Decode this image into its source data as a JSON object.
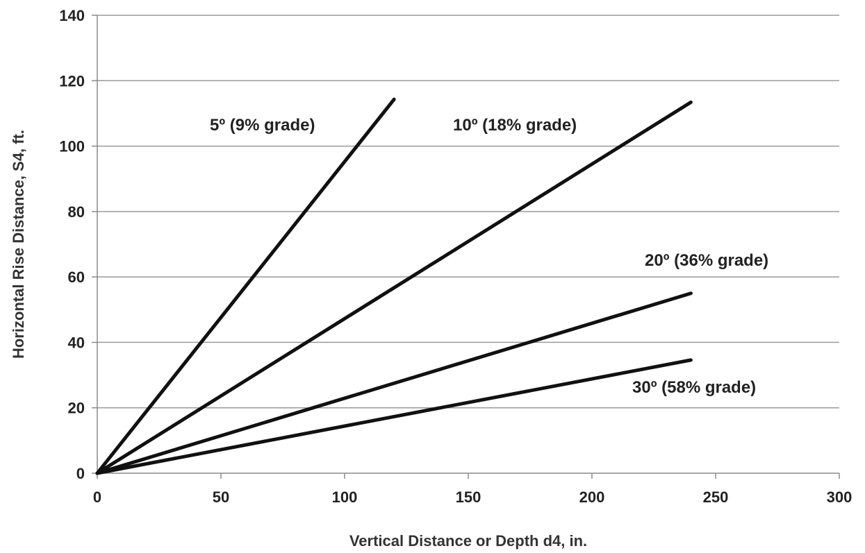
{
  "chart_data": {
    "type": "line",
    "title": "",
    "xlabel": "Vertical Distance or Depth d4, in.",
    "ylabel": "Horizontal Rise Distance, S4, ft.",
    "xlim": [
      0,
      300
    ],
    "ylim": [
      0,
      140
    ],
    "xticks": [
      0,
      50,
      100,
      150,
      200,
      250,
      300
    ],
    "yticks": [
      0,
      20,
      40,
      60,
      80,
      100,
      120,
      140
    ],
    "grid": "horizontal",
    "legend": "none",
    "line_color": "#111111",
    "series": [
      {
        "name": "5º (9% grade)",
        "label": "5º (9% grade)",
        "x": [
          0,
          120
        ],
        "y": [
          0,
          114.3
        ]
      },
      {
        "name": "10º (18% grade)",
        "label": "10º (18% grade)",
        "x": [
          0,
          240
        ],
        "y": [
          0,
          113.4
        ]
      },
      {
        "name": "20º (36% grade)",
        "label": "20º (36% grade)",
        "x": [
          0,
          240
        ],
        "y": [
          0,
          55
        ]
      },
      {
        "name": "30º (58% grade)",
        "label": "30º (58% grade)",
        "x": [
          0,
          240
        ],
        "y": [
          0,
          34.6
        ]
      }
    ]
  }
}
